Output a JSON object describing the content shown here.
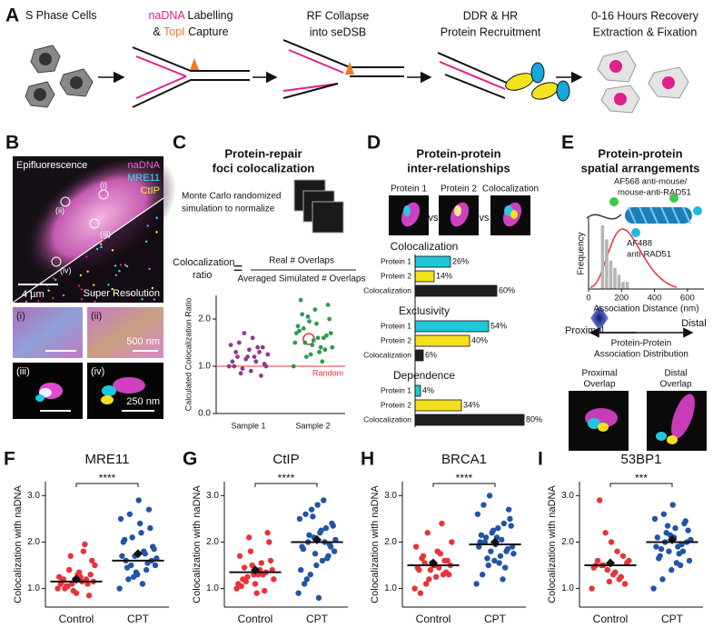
{
  "panel_a": {
    "label": "A",
    "steps": [
      [
        [
          "S Phase Cells"
        ]
      ],
      [
        [
          "naDNA",
          " Labelling"
        ],
        [
          "& ",
          "TopI",
          " Capture"
        ]
      ],
      [
        [
          "RF Collapse"
        ],
        [
          "into seDSB"
        ]
      ],
      [
        [
          "DDR & HR"
        ],
        [
          "Protein Recruitment"
        ]
      ],
      [
        [
          "0-16 Hours Recovery"
        ],
        [
          "Extraction & Fixation"
        ]
      ]
    ]
  },
  "panel_b": {
    "label": "B",
    "image_labels": [
      "Epifluorescence",
      "Super Resolution"
    ],
    "channels": [
      "naDNA",
      "MRE11",
      "CtIP"
    ],
    "regions": [
      "(i)",
      "(ii)",
      "(iii)",
      "(iv)"
    ],
    "scale_bars": [
      "4 µm",
      "500 nm",
      "250 nm"
    ]
  },
  "panel_c": {
    "label": "C",
    "title": [
      "Protein-repair",
      "foci colocalization"
    ],
    "note": [
      "Monte Carlo randomized",
      "simulation to normalize"
    ],
    "ratio_label": [
      "Colocalization",
      "ratio"
    ],
    "equals": "=",
    "numerator": "Real # Overlaps",
    "denominator": "Averaged Simulated # Overlaps"
  },
  "panel_d": {
    "label": "D",
    "title": [
      "Protein-protein",
      "inter-relationships"
    ],
    "image_labels": [
      "Protein 1",
      "Protein 2",
      "Colocalization"
    ],
    "vs": "vs"
  },
  "panel_e": {
    "label": "E",
    "title": [
      "Protein-protein",
      "spatial arrangements"
    ],
    "antibody_1": [
      "AF568 anti-mouse/",
      "mouse-anti-RAD51"
    ],
    "antibody_2": [
      "AF488",
      "anti-RAD51"
    ],
    "proximal": "Proximal",
    "distal": "Distal",
    "distribution": [
      "Protein-Protein",
      "Association Distribution"
    ],
    "overlaps": [
      [
        "Proximal",
        "Overlap"
      ],
      [
        "Distal",
        "Overlap"
      ]
    ]
  },
  "chart_data": [
    {
      "type": "strip",
      "ylabel": "Calculated Colocalization Ratio",
      "categories": [
        "Sample 1",
        "Sample 2"
      ],
      "groups": [
        {
          "color": "#8e3b8e",
          "values": [
            1.0,
            0.9,
            1.1,
            1.2,
            1.3,
            1.4,
            1.5,
            0.8,
            0.95,
            1.05,
            1.15,
            1.25,
            1.35,
            1.45,
            1.6,
            1.0,
            1.1,
            1.2,
            1.3,
            0.85,
            1.4,
            1.7,
            1.0,
            1.2
          ]
        },
        {
          "color": "#2e9a50",
          "values": [
            1.0,
            1.2,
            1.3,
            1.4,
            1.5,
            1.6,
            1.7,
            1.8,
            1.9,
            2.0,
            2.1,
            2.2,
            2.3,
            2.4,
            1.55,
            1.65,
            1.75,
            1.45,
            1.35,
            1.85,
            1.25,
            1.6,
            1.7,
            1.95,
            1.1,
            1.5,
            2.05,
            1.4
          ]
        }
      ],
      "reference": {
        "value": 1,
        "label": "Random",
        "color": "#e8333a"
      },
      "ylim": [
        0,
        2.5
      ],
      "yticks": [
        {
          "value": 0,
          "label": "0.0"
        },
        {
          "value": 1,
          "label": "1.0"
        },
        {
          "value": 2,
          "label": "2.0"
        }
      ]
    },
    {
      "type": "bar",
      "orientation": "horizontal",
      "categories": [
        "Protein 1",
        "Protein 2",
        "Colocalization"
      ],
      "colors": [
        "#1ec8d8",
        "#f2e11c",
        "#1f1f1f"
      ],
      "xlim": [
        0,
        100
      ],
      "groups": [
        {
          "title": "Colocalization",
          "values": [
            26,
            14,
            60
          ],
          "value_labels": [
            "26%",
            "14%",
            "60%"
          ]
        },
        {
          "title": "Exclusivity",
          "values": [
            54,
            40,
            6
          ],
          "value_labels": [
            "54%",
            "40%",
            "6%"
          ]
        },
        {
          "title": "Dependence",
          "values": [
            4,
            34,
            80
          ],
          "value_labels": [
            "4%",
            "34%",
            "80%"
          ]
        }
      ]
    },
    {
      "type": "histogram",
      "xlabel": "Association Distance (nm)",
      "ylabel": "Frequency",
      "color": "#b5b5b5",
      "bins": [
        75,
        100,
        125,
        150,
        175,
        200,
        225,
        250
      ],
      "counts": [
        9,
        7,
        4,
        3,
        2,
        1,
        1
      ],
      "xlim": [
        0,
        700
      ],
      "xticks": [
        0,
        200,
        400,
        600
      ],
      "ylim": [
        0,
        10
      ]
    },
    {
      "type": "strip",
      "label": "F",
      "title": "MRE11",
      "ylabel": "Colocalization with naDNA",
      "categories": [
        "Control",
        "CPT"
      ],
      "significance": "****",
      "groups": [
        {
          "color": "#e8333a",
          "line": 1.15,
          "mean": 1.2,
          "values": [
            1.0,
            1.1,
            1.2,
            1.15,
            0.9,
            1.3,
            1.05,
            1.25,
            1.5,
            1.7,
            1.95,
            1.1,
            1.2,
            0.85,
            1.0,
            1.35,
            1.15,
            1.4,
            1.8,
            1.25,
            0.95,
            1.1,
            1.2,
            1.3,
            1.6,
            1.05,
            1.15
          ]
        },
        {
          "color": "#2255a4",
          "line": 1.6,
          "mean": 1.75,
          "values": [
            1.0,
            1.2,
            1.3,
            1.4,
            1.5,
            1.6,
            1.7,
            1.8,
            1.9,
            2.0,
            2.1,
            2.2,
            2.3,
            2.5,
            2.6,
            2.9,
            1.55,
            1.65,
            1.45,
            1.35,
            1.75,
            1.85,
            2.05,
            1.25,
            1.1,
            1.6,
            1.7,
            1.5,
            2.4,
            2.7
          ]
        }
      ],
      "ylim": [
        0.6,
        3.3
      ],
      "yticks": [
        {
          "value": 1,
          "label": "1.0"
        },
        {
          "value": 2,
          "label": "2.0"
        },
        {
          "value": 3,
          "label": "3.0"
        }
      ]
    },
    {
      "type": "strip",
      "label": "G",
      "title": "CtIP",
      "ylabel": "Colocalization with naDNA",
      "categories": [
        "Control",
        "CPT"
      ],
      "significance": "****",
      "groups": [
        {
          "color": "#e8333a",
          "line": 1.35,
          "mean": 1.4,
          "values": [
            1.0,
            1.1,
            1.2,
            1.3,
            1.4,
            1.5,
            1.6,
            1.8,
            2.0,
            2.1,
            2.2,
            1.25,
            1.35,
            1.15,
            0.95,
            1.45,
            1.3,
            1.2,
            1.55,
            1.05,
            1.4,
            1.7,
            1.3,
            1.1,
            0.9
          ]
        },
        {
          "color": "#2255a4",
          "line": 2.0,
          "mean": 2.05,
          "values": [
            0.9,
            1.1,
            1.3,
            1.5,
            1.6,
            1.7,
            1.8,
            1.9,
            2.0,
            2.1,
            2.2,
            2.3,
            2.4,
            2.5,
            2.6,
            2.7,
            2.8,
            2.9,
            1.95,
            2.05,
            1.85,
            2.15,
            1.75,
            2.25,
            1.65,
            2.35,
            1.4,
            1.2,
            2.55,
            0.8,
            2.0,
            1.9
          ]
        }
      ],
      "ylim": [
        0.6,
        3.3
      ],
      "yticks": [
        {
          "value": 1,
          "label": "1.0"
        },
        {
          "value": 2,
          "label": "2.0"
        },
        {
          "value": 3,
          "label": "3.0"
        }
      ]
    },
    {
      "type": "strip",
      "label": "H",
      "title": "BRCA1",
      "ylabel": "Colocalization with naDNA",
      "categories": [
        "Control",
        "CPT"
      ],
      "significance": "****",
      "groups": [
        {
          "color": "#e8333a",
          "line": 1.5,
          "mean": 1.55,
          "values": [
            1.0,
            1.2,
            1.3,
            1.4,
            1.5,
            1.6,
            1.7,
            1.8,
            2.0,
            2.2,
            2.4,
            1.45,
            1.55,
            1.35,
            1.65,
            1.25,
            1.5,
            1.1,
            1.75,
            1.9,
            1.4,
            1.6,
            0.9,
            1.5,
            1.3,
            1.55,
            1.45
          ]
        },
        {
          "color": "#2255a4",
          "line": 1.95,
          "mean": 2.0,
          "values": [
            1.1,
            1.3,
            1.5,
            1.6,
            1.7,
            1.8,
            1.9,
            2.0,
            2.1,
            2.2,
            2.3,
            2.4,
            2.5,
            2.6,
            2.8,
            3.0,
            1.95,
            2.05,
            1.85,
            1.75,
            2.15,
            1.65,
            2.25,
            1.55,
            1.45,
            2.35,
            1.9,
            2.0,
            1.8,
            2.1,
            1.2,
            2.7
          ]
        }
      ],
      "ylim": [
        0.6,
        3.3
      ],
      "yticks": [
        {
          "value": 1,
          "label": "1.0"
        },
        {
          "value": 2,
          "label": "2.0"
        },
        {
          "value": 3,
          "label": "3.0"
        }
      ]
    },
    {
      "type": "strip",
      "label": "I",
      "title": "53BP1",
      "ylabel": "Colocalization with naDNA",
      "categories": [
        "Control",
        "CPT"
      ],
      "significance": "***",
      "groups": [
        {
          "color": "#e8333a",
          "line": 1.5,
          "mean": 1.55,
          "values": [
            1.0,
            1.1,
            1.2,
            1.3,
            1.4,
            1.5,
            1.5,
            1.6,
            1.7,
            1.8,
            2.0,
            2.2,
            2.9,
            1.45,
            1.55,
            1.25,
            1.35,
            1.15,
            1.5,
            1.6
          ]
        },
        {
          "color": "#2255a4",
          "line": 2.0,
          "mean": 2.05,
          "values": [
            1.0,
            1.2,
            1.4,
            1.5,
            1.6,
            1.7,
            1.8,
            1.9,
            2.0,
            2.1,
            2.2,
            2.3,
            2.4,
            2.5,
            2.6,
            2.8,
            1.95,
            2.05,
            1.85,
            2.15,
            1.75,
            2.25,
            1.65,
            2.35,
            1.55,
            2.45,
            1.9,
            2.0,
            2.1,
            1.8
          ]
        }
      ],
      "ylim": [
        0.6,
        3.3
      ],
      "yticks": [
        {
          "value": 1,
          "label": "1.0"
        },
        {
          "value": 2,
          "label": "2.0"
        },
        {
          "value": 3,
          "label": "3.0"
        }
      ]
    }
  ]
}
